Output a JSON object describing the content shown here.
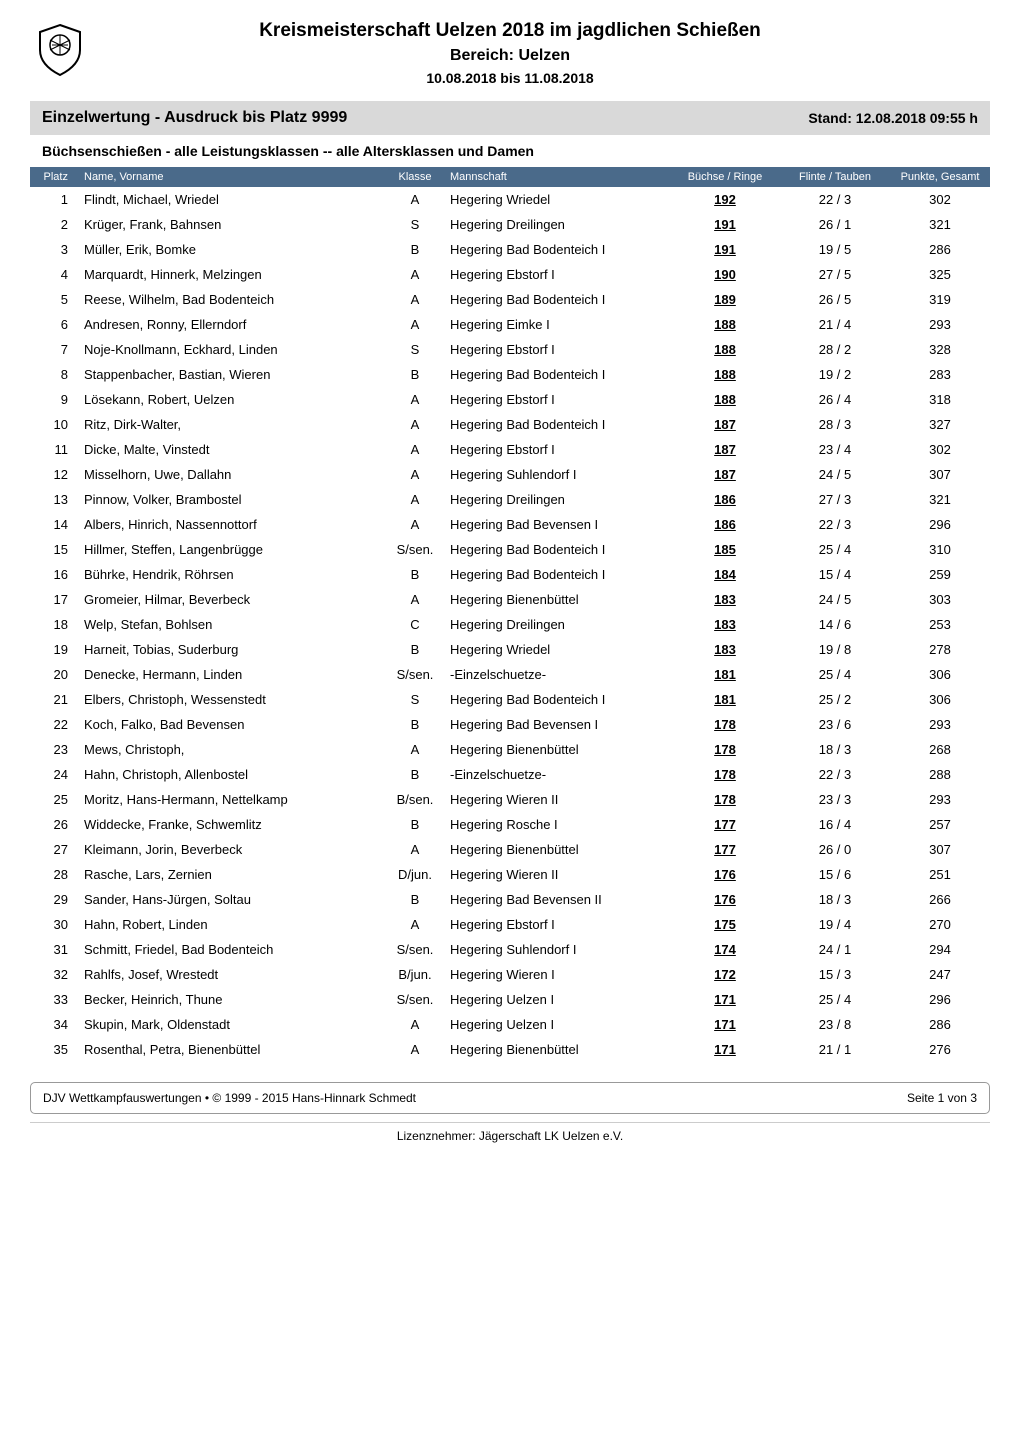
{
  "header": {
    "main_title": "Kreismeisterschaft Uelzen 2018 im jagdlichen Schießen",
    "subtitle": "Bereich: Uelzen",
    "date_range": "10.08.2018 bis 11.08.2018"
  },
  "section": {
    "title": "Einzelwertung - Ausdruck bis Platz 9999",
    "stand_label": "Stand:",
    "stand_value": "12.08.2018  09:55 h",
    "subsection_title": "Büchsenschießen - alle Leistungsklassen -- alle Altersklassen und Damen"
  },
  "table": {
    "headers": {
      "platz": "Platz",
      "name": "Name, Vorname",
      "klasse": "Klasse",
      "mannschaft": "Mannschaft",
      "buechse": "Büchse / Ringe",
      "flinte": "Flinte / Tauben",
      "punkte": "Punkte, Gesamt"
    },
    "rows": [
      {
        "platz": "1",
        "name": "Flindt, Michael, Wriedel",
        "klasse": "A",
        "mannschaft": "Hegering Wriedel",
        "buechse": "192",
        "flinte": "22 / 3",
        "punkte": "302"
      },
      {
        "platz": "2",
        "name": "Krüger, Frank, Bahnsen",
        "klasse": "S",
        "mannschaft": "Hegering Dreilingen",
        "buechse": "191",
        "flinte": "26 / 1",
        "punkte": "321"
      },
      {
        "platz": "3",
        "name": "Müller, Erik, Bomke",
        "klasse": "B",
        "mannschaft": "Hegering Bad Bodenteich I",
        "buechse": "191",
        "flinte": "19 / 5",
        "punkte": "286"
      },
      {
        "platz": "4",
        "name": "Marquardt, Hinnerk, Melzingen",
        "klasse": "A",
        "mannschaft": "Hegering Ebstorf I",
        "buechse": "190",
        "flinte": "27 / 5",
        "punkte": "325"
      },
      {
        "platz": "5",
        "name": "Reese, Wilhelm, Bad Bodenteich",
        "klasse": "A",
        "mannschaft": "Hegering Bad Bodenteich I",
        "buechse": "189",
        "flinte": "26 / 5",
        "punkte": "319"
      },
      {
        "platz": "6",
        "name": "Andresen, Ronny, Ellerndorf",
        "klasse": "A",
        "mannschaft": "Hegering Eimke I",
        "buechse": "188",
        "flinte": "21 / 4",
        "punkte": "293"
      },
      {
        "platz": "7",
        "name": "Noje-Knollmann, Eckhard, Linden",
        "klasse": "S",
        "mannschaft": "Hegering Ebstorf I",
        "buechse": "188",
        "flinte": "28 / 2",
        "punkte": "328"
      },
      {
        "platz": "8",
        "name": "Stappenbacher, Bastian, Wieren",
        "klasse": "B",
        "mannschaft": "Hegering Bad Bodenteich I",
        "buechse": "188",
        "flinte": "19 / 2",
        "punkte": "283"
      },
      {
        "platz": "9",
        "name": "Lösekann, Robert, Uelzen",
        "klasse": "A",
        "mannschaft": "Hegering Ebstorf I",
        "buechse": "188",
        "flinte": "26 / 4",
        "punkte": "318"
      },
      {
        "platz": "10",
        "name": "Ritz, Dirk-Walter,",
        "klasse": "A",
        "mannschaft": "Hegering Bad Bodenteich I",
        "buechse": "187",
        "flinte": "28 / 3",
        "punkte": "327"
      },
      {
        "platz": "11",
        "name": "Dicke, Malte, Vinstedt",
        "klasse": "A",
        "mannschaft": "Hegering Ebstorf I",
        "buechse": "187",
        "flinte": "23 / 4",
        "punkte": "302"
      },
      {
        "platz": "12",
        "name": "Misselhorn, Uwe, Dallahn",
        "klasse": "A",
        "mannschaft": "Hegering Suhlendorf I",
        "buechse": "187",
        "flinte": "24 / 5",
        "punkte": "307"
      },
      {
        "platz": "13",
        "name": "Pinnow, Volker, Brambostel",
        "klasse": "A",
        "mannschaft": "Hegering Dreilingen",
        "buechse": "186",
        "flinte": "27 / 3",
        "punkte": "321"
      },
      {
        "platz": "14",
        "name": "Albers, Hinrich, Nassennottorf",
        "klasse": "A",
        "mannschaft": "Hegering Bad Bevensen I",
        "buechse": "186",
        "flinte": "22 / 3",
        "punkte": "296"
      },
      {
        "platz": "15",
        "name": "Hillmer, Steffen, Langenbrügge",
        "klasse": "S/sen.",
        "mannschaft": "Hegering Bad Bodenteich I",
        "buechse": "185",
        "flinte": "25 / 4",
        "punkte": "310"
      },
      {
        "platz": "16",
        "name": "Bührke, Hendrik, Röhrsen",
        "klasse": "B",
        "mannschaft": "Hegering Bad Bodenteich I",
        "buechse": "184",
        "flinte": "15 / 4",
        "punkte": "259"
      },
      {
        "platz": "17",
        "name": "Gromeier, Hilmar, Beverbeck",
        "klasse": "A",
        "mannschaft": "Hegering Bienenbüttel",
        "buechse": "183",
        "flinte": "24 / 5",
        "punkte": "303"
      },
      {
        "platz": "18",
        "name": "Welp, Stefan, Bohlsen",
        "klasse": "C",
        "mannschaft": "Hegering Dreilingen",
        "buechse": "183",
        "flinte": "14 / 6",
        "punkte": "253"
      },
      {
        "platz": "19",
        "name": "Harneit, Tobias, Suderburg",
        "klasse": "B",
        "mannschaft": "Hegering Wriedel",
        "buechse": "183",
        "flinte": "19 / 8",
        "punkte": "278"
      },
      {
        "platz": "20",
        "name": "Denecke, Hermann, Linden",
        "klasse": "S/sen.",
        "mannschaft": "-Einzelschuetze-",
        "buechse": "181",
        "flinte": "25 / 4",
        "punkte": "306"
      },
      {
        "platz": "21",
        "name": "Elbers, Christoph, Wessenstedt",
        "klasse": "S",
        "mannschaft": "Hegering Bad Bodenteich I",
        "buechse": "181",
        "flinte": "25 / 2",
        "punkte": "306"
      },
      {
        "platz": "22",
        "name": "Koch, Falko, Bad Bevensen",
        "klasse": "B",
        "mannschaft": "Hegering Bad Bevensen I",
        "buechse": "178",
        "flinte": "23 / 6",
        "punkte": "293"
      },
      {
        "platz": "23",
        "name": "Mews, Christoph,",
        "klasse": "A",
        "mannschaft": "Hegering Bienenbüttel",
        "buechse": "178",
        "flinte": "18 / 3",
        "punkte": "268"
      },
      {
        "platz": "24",
        "name": "Hahn, Christoph, Allenbostel",
        "klasse": "B",
        "mannschaft": "-Einzelschuetze-",
        "buechse": "178",
        "flinte": "22 / 3",
        "punkte": "288"
      },
      {
        "platz": "25",
        "name": "Moritz, Hans-Hermann, Nettelkamp",
        "klasse": "B/sen.",
        "mannschaft": "Hegering Wieren II",
        "buechse": "178",
        "flinte": "23 / 3",
        "punkte": "293"
      },
      {
        "platz": "26",
        "name": "Widdecke, Franke, Schwemlitz",
        "klasse": "B",
        "mannschaft": "Hegering Rosche I",
        "buechse": "177",
        "flinte": "16 / 4",
        "punkte": "257"
      },
      {
        "platz": "27",
        "name": "Kleimann, Jorin, Beverbeck",
        "klasse": "A",
        "mannschaft": "Hegering Bienenbüttel",
        "buechse": "177",
        "flinte": "26 / 0",
        "punkte": "307"
      },
      {
        "platz": "28",
        "name": "Rasche, Lars, Zernien",
        "klasse": "D/jun.",
        "mannschaft": "Hegering Wieren II",
        "buechse": "176",
        "flinte": "15 / 6",
        "punkte": "251"
      },
      {
        "platz": "29",
        "name": "Sander, Hans-Jürgen, Soltau",
        "klasse": "B",
        "mannschaft": "Hegering Bad Bevensen II",
        "buechse": "176",
        "flinte": "18 / 3",
        "punkte": "266"
      },
      {
        "platz": "30",
        "name": "Hahn, Robert, Linden",
        "klasse": "A",
        "mannschaft": "Hegering Ebstorf I",
        "buechse": "175",
        "flinte": "19 / 4",
        "punkte": "270"
      },
      {
        "platz": "31",
        "name": "Schmitt, Friedel, Bad Bodenteich",
        "klasse": "S/sen.",
        "mannschaft": "Hegering Suhlendorf I",
        "buechse": "174",
        "flinte": "24 / 1",
        "punkte": "294"
      },
      {
        "platz": "32",
        "name": "Rahlfs, Josef, Wrestedt",
        "klasse": "B/jun.",
        "mannschaft": "Hegering Wieren I",
        "buechse": "172",
        "flinte": "15 / 3",
        "punkte": "247"
      },
      {
        "platz": "33",
        "name": "Becker, Heinrich, Thune",
        "klasse": "S/sen.",
        "mannschaft": "Hegering Uelzen I",
        "buechse": "171",
        "flinte": "25 / 4",
        "punkte": "296"
      },
      {
        "platz": "34",
        "name": "Skupin, Mark, Oldenstadt",
        "klasse": "A",
        "mannschaft": "Hegering Uelzen I",
        "buechse": "171",
        "flinte": "23 / 8",
        "punkte": "286"
      },
      {
        "platz": "35",
        "name": "Rosenthal, Petra, Bienenbüttel",
        "klasse": "A",
        "mannschaft": "Hegering Bienenbüttel",
        "buechse": "171",
        "flinte": "21 / 1",
        "punkte": "276"
      }
    ]
  },
  "footer": {
    "copyright": "DJV Wettkampfauswertungen • © 1999 - 2015 Hans-Hinnark Schmedt",
    "page_info": "Seite 1 von 3",
    "license": "Lizenznehmer: Jägerschaft LK Uelzen e.V."
  }
}
